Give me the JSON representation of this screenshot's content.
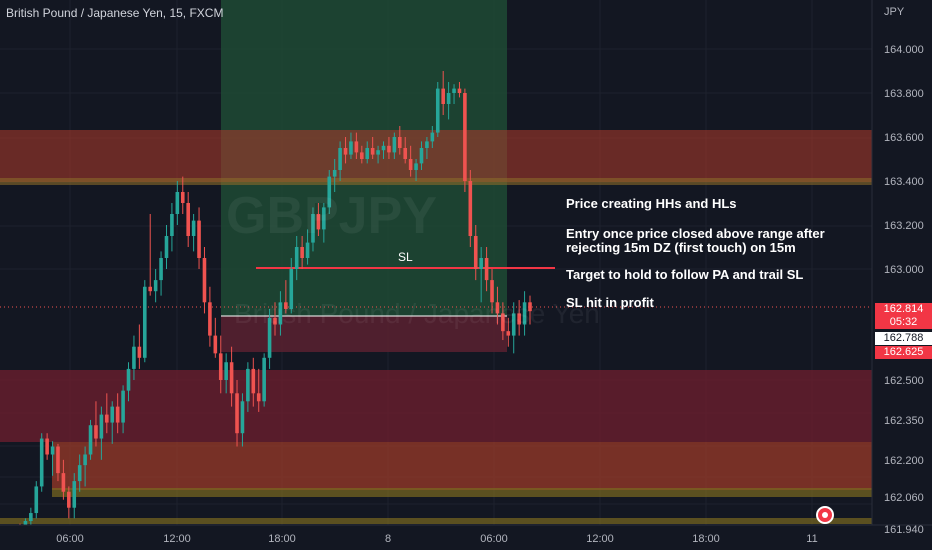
{
  "header": {
    "symbol_title": "British Pound / Japanese Yen, 15, FXCM",
    "currency": "JPY"
  },
  "watermark": {
    "symbol": "GBPJPY",
    "description": "British Pound / Japanese Yen"
  },
  "annotations": {
    "note1": "Price creating HHs and HLs",
    "note2_line1": "Entry once price closed above range after",
    "note2_line2": "rejecting 15m DZ (first touch) on 15m",
    "note3": "Target to hold to follow PA and trail SL",
    "note4": "SL hit in profit",
    "sl_label": "SL"
  },
  "price_badges": {
    "last_price": "162.814",
    "countdown": "05:32",
    "entry_price": "162.788",
    "stop_price": "162.625"
  },
  "colors": {
    "background": "#131722",
    "bull": "#26a69a",
    "bear": "#ef5350",
    "supply_zone": "#e0533f",
    "demand_zone": "#c0392b",
    "target_zone": "#1e5a3a",
    "stop_zone": "#7a2a3a"
  },
  "chart_data": {
    "type": "candlestick",
    "title": "British Pound / Japanese Yen, 15, FXCM",
    "y_axis_ticks": [
      "164.000",
      "163.800",
      "163.600",
      "163.400",
      "163.200",
      "163.000",
      "162.500",
      "162.350",
      "162.200",
      "162.060",
      "161.940"
    ],
    "x_axis_ticks": [
      "06:00",
      "12:00",
      "18:00",
      "8",
      "06:00",
      "12:00",
      "18:00",
      "11"
    ],
    "series": [
      {
        "o": 161.95,
        "h": 161.96,
        "l": 161.92,
        "c": 161.93
      },
      {
        "o": 161.93,
        "h": 161.98,
        "l": 161.92,
        "c": 161.97
      },
      {
        "o": 161.97,
        "h": 162.02,
        "l": 161.95,
        "c": 162.0
      },
      {
        "o": 162.0,
        "h": 162.12,
        "l": 161.98,
        "c": 162.1
      },
      {
        "o": 162.1,
        "h": 162.3,
        "l": 162.08,
        "c": 162.28
      },
      {
        "o": 162.28,
        "h": 162.3,
        "l": 162.2,
        "c": 162.22
      },
      {
        "o": 162.22,
        "h": 162.27,
        "l": 162.14,
        "c": 162.25
      },
      {
        "o": 162.25,
        "h": 162.26,
        "l": 162.12,
        "c": 162.15
      },
      {
        "o": 162.15,
        "h": 162.2,
        "l": 162.05,
        "c": 162.08
      },
      {
        "o": 162.08,
        "h": 162.1,
        "l": 161.98,
        "c": 162.02
      },
      {
        "o": 162.02,
        "h": 162.15,
        "l": 161.98,
        "c": 162.12
      },
      {
        "o": 162.12,
        "h": 162.22,
        "l": 162.08,
        "c": 162.18
      },
      {
        "o": 162.18,
        "h": 162.25,
        "l": 162.1,
        "c": 162.22
      },
      {
        "o": 162.22,
        "h": 162.35,
        "l": 162.2,
        "c": 162.33
      },
      {
        "o": 162.33,
        "h": 162.42,
        "l": 162.25,
        "c": 162.28
      },
      {
        "o": 162.28,
        "h": 162.4,
        "l": 162.2,
        "c": 162.37
      },
      {
        "o": 162.37,
        "h": 162.45,
        "l": 162.3,
        "c": 162.34
      },
      {
        "o": 162.34,
        "h": 162.42,
        "l": 162.26,
        "c": 162.4
      },
      {
        "o": 162.4,
        "h": 162.45,
        "l": 162.3,
        "c": 162.34
      },
      {
        "o": 162.34,
        "h": 162.48,
        "l": 162.3,
        "c": 162.46
      },
      {
        "o": 162.46,
        "h": 162.58,
        "l": 162.42,
        "c": 162.55
      },
      {
        "o": 162.55,
        "h": 162.7,
        "l": 162.5,
        "c": 162.65
      },
      {
        "o": 162.65,
        "h": 162.75,
        "l": 162.55,
        "c": 162.6
      },
      {
        "o": 162.6,
        "h": 162.95,
        "l": 162.58,
        "c": 162.92
      },
      {
        "o": 162.92,
        "h": 163.25,
        "l": 162.88,
        "c": 162.9
      },
      {
        "o": 162.9,
        "h": 163.0,
        "l": 162.85,
        "c": 162.95
      },
      {
        "o": 162.95,
        "h": 163.08,
        "l": 162.88,
        "c": 163.05
      },
      {
        "o": 163.05,
        "h": 163.2,
        "l": 163.0,
        "c": 163.15
      },
      {
        "o": 163.15,
        "h": 163.3,
        "l": 163.08,
        "c": 163.25
      },
      {
        "o": 163.25,
        "h": 163.4,
        "l": 163.2,
        "c": 163.35
      },
      {
        "o": 163.35,
        "h": 163.42,
        "l": 163.25,
        "c": 163.3
      },
      {
        "o": 163.3,
        "h": 163.35,
        "l": 163.1,
        "c": 163.15
      },
      {
        "o": 163.15,
        "h": 163.25,
        "l": 163.08,
        "c": 163.22
      },
      {
        "o": 163.22,
        "h": 163.28,
        "l": 163.0,
        "c": 163.05
      },
      {
        "o": 163.05,
        "h": 163.1,
        "l": 162.8,
        "c": 162.85
      },
      {
        "o": 162.85,
        "h": 162.92,
        "l": 162.65,
        "c": 162.7
      },
      {
        "o": 162.7,
        "h": 162.78,
        "l": 162.6,
        "c": 162.62
      },
      {
        "o": 162.62,
        "h": 162.7,
        "l": 162.45,
        "c": 162.5
      },
      {
        "o": 162.5,
        "h": 162.62,
        "l": 162.45,
        "c": 162.58
      },
      {
        "o": 162.58,
        "h": 162.65,
        "l": 162.4,
        "c": 162.45
      },
      {
        "o": 162.45,
        "h": 162.5,
        "l": 162.25,
        "c": 162.3
      },
      {
        "o": 162.3,
        "h": 162.45,
        "l": 162.25,
        "c": 162.42
      },
      {
        "o": 162.42,
        "h": 162.58,
        "l": 162.38,
        "c": 162.55
      },
      {
        "o": 162.55,
        "h": 162.6,
        "l": 162.4,
        "c": 162.45
      },
      {
        "o": 162.45,
        "h": 162.55,
        "l": 162.38,
        "c": 162.42
      },
      {
        "o": 162.42,
        "h": 162.62,
        "l": 162.4,
        "c": 162.6
      },
      {
        "o": 162.6,
        "h": 162.82,
        "l": 162.55,
        "c": 162.78
      },
      {
        "o": 162.78,
        "h": 162.85,
        "l": 162.7,
        "c": 162.75
      },
      {
        "o": 162.75,
        "h": 162.9,
        "l": 162.7,
        "c": 162.85
      },
      {
        "o": 162.85,
        "h": 162.95,
        "l": 162.8,
        "c": 162.82
      },
      {
        "o": 162.82,
        "h": 163.05,
        "l": 162.8,
        "c": 163.0
      },
      {
        "o": 163.0,
        "h": 163.15,
        "l": 162.95,
        "c": 163.1
      },
      {
        "o": 163.1,
        "h": 163.15,
        "l": 163.0,
        "c": 163.05
      },
      {
        "o": 163.05,
        "h": 163.18,
        "l": 163.02,
        "c": 163.12
      },
      {
        "o": 163.12,
        "h": 163.28,
        "l": 163.08,
        "c": 163.25
      },
      {
        "o": 163.25,
        "h": 163.3,
        "l": 163.15,
        "c": 163.18
      },
      {
        "o": 163.18,
        "h": 163.3,
        "l": 163.12,
        "c": 163.28
      },
      {
        "o": 163.28,
        "h": 163.45,
        "l": 163.25,
        "c": 163.42
      },
      {
        "o": 163.42,
        "h": 163.5,
        "l": 163.35,
        "c": 163.45
      },
      {
        "o": 163.45,
        "h": 163.58,
        "l": 163.4,
        "c": 163.55
      },
      {
        "o": 163.55,
        "h": 163.6,
        "l": 163.48,
        "c": 163.52
      },
      {
        "o": 163.52,
        "h": 163.62,
        "l": 163.5,
        "c": 163.58
      },
      {
        "o": 163.58,
        "h": 163.62,
        "l": 163.5,
        "c": 163.53
      },
      {
        "o": 163.53,
        "h": 163.56,
        "l": 163.48,
        "c": 163.5
      },
      {
        "o": 163.5,
        "h": 163.58,
        "l": 163.48,
        "c": 163.55
      },
      {
        "o": 163.55,
        "h": 163.6,
        "l": 163.5,
        "c": 163.52
      },
      {
        "o": 163.52,
        "h": 163.56,
        "l": 163.48,
        "c": 163.54
      },
      {
        "o": 163.54,
        "h": 163.58,
        "l": 163.5,
        "c": 163.56
      },
      {
        "o": 163.56,
        "h": 163.6,
        "l": 163.5,
        "c": 163.53
      },
      {
        "o": 163.53,
        "h": 163.62,
        "l": 163.5,
        "c": 163.6
      },
      {
        "o": 163.6,
        "h": 163.65,
        "l": 163.52,
        "c": 163.55
      },
      {
        "o": 163.55,
        "h": 163.6,
        "l": 163.48,
        "c": 163.5
      },
      {
        "o": 163.5,
        "h": 163.56,
        "l": 163.42,
        "c": 163.45
      },
      {
        "o": 163.45,
        "h": 163.5,
        "l": 163.4,
        "c": 163.48
      },
      {
        "o": 163.48,
        "h": 163.58,
        "l": 163.45,
        "c": 163.55
      },
      {
        "o": 163.55,
        "h": 163.6,
        "l": 163.5,
        "c": 163.58
      },
      {
        "o": 163.58,
        "h": 163.65,
        "l": 163.55,
        "c": 163.62
      },
      {
        "o": 163.62,
        "h": 163.85,
        "l": 163.6,
        "c": 163.82
      },
      {
        "o": 163.82,
        "h": 163.9,
        "l": 163.7,
        "c": 163.75
      },
      {
        "o": 163.75,
        "h": 163.85,
        "l": 163.68,
        "c": 163.8
      },
      {
        "o": 163.8,
        "h": 163.84,
        "l": 163.75,
        "c": 163.82
      },
      {
        "o": 163.82,
        "h": 163.85,
        "l": 163.78,
        "c": 163.8
      },
      {
        "o": 163.8,
        "h": 163.82,
        "l": 163.35,
        "c": 163.4
      },
      {
        "o": 163.4,
        "h": 163.45,
        "l": 163.1,
        "c": 163.15
      },
      {
        "o": 163.15,
        "h": 163.2,
        "l": 162.95,
        "c": 163.0
      },
      {
        "o": 163.0,
        "h": 163.1,
        "l": 162.85,
        "c": 163.05
      },
      {
        "o": 163.05,
        "h": 163.1,
        "l": 162.9,
        "c": 162.95
      },
      {
        "o": 162.95,
        "h": 163.0,
        "l": 162.8,
        "c": 162.85
      },
      {
        "o": 162.85,
        "h": 162.92,
        "l": 162.75,
        "c": 162.8
      },
      {
        "o": 162.8,
        "h": 162.85,
        "l": 162.68,
        "c": 162.72
      },
      {
        "o": 162.72,
        "h": 162.78,
        "l": 162.65,
        "c": 162.7
      },
      {
        "o": 162.7,
        "h": 162.85,
        "l": 162.62,
        "c": 162.8
      },
      {
        "o": 162.8,
        "h": 162.86,
        "l": 162.7,
        "c": 162.75
      },
      {
        "o": 162.75,
        "h": 162.9,
        "l": 162.7,
        "c": 162.85
      },
      {
        "o": 162.85,
        "h": 162.88,
        "l": 162.75,
        "c": 162.81
      }
    ],
    "levels": {
      "sl_line": 163.0,
      "entry_line": 162.788
    }
  }
}
